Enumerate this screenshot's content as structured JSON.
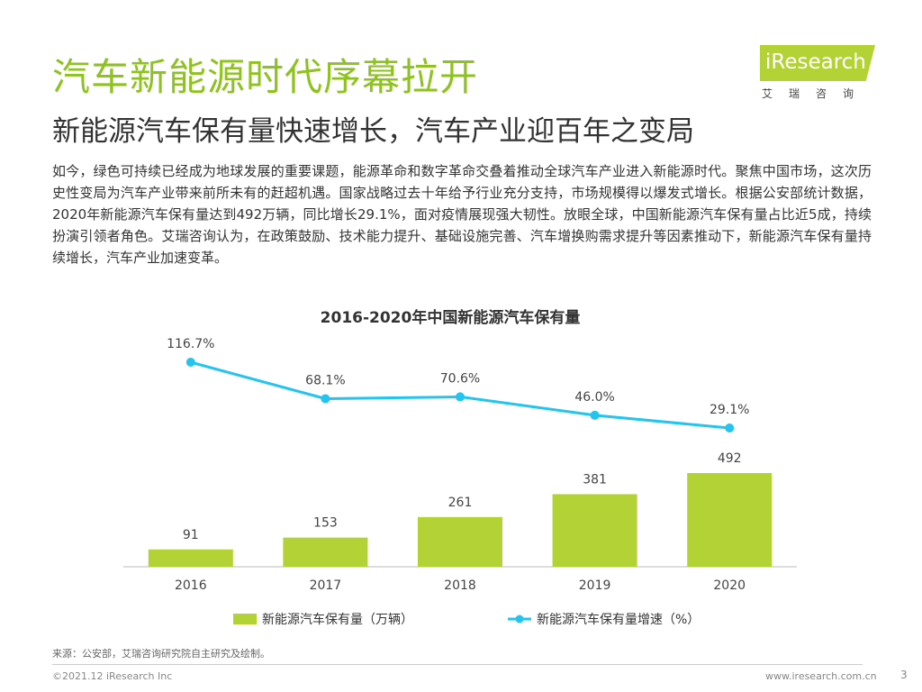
{
  "header": {
    "title": "汽车新能源时代序幕拉开",
    "subtitle": "新能源汽车保有量快速增长，汽车产业迎百年之变局"
  },
  "logo": {
    "name": "iResearch",
    "subtitle": "艾瑞咨询"
  },
  "body": {
    "paragraph": "如今，绿色可持续已经成为地球发展的重要课题，能源革命和数字革命交叠着推动全球汽车产业进入新能源时代。聚焦中国市场，这次历史性变局为汽车产业带来前所未有的赶超机遇。国家战略过去十年给予行业充分支持，市场规模得以爆发式增长。根据公安部统计数据，2020年新能源汽车保有量达到492万辆，同比增长29.1%，面对疫情展现强大韧性。放眼全球，中国新能源汽车保有量占比近5成，持续扮演引领者角色。艾瑞咨询认为，在政策鼓励、技术能力提升、基础设施完善、汽车增换购需求提升等因素推动下，新能源汽车保有量持续增长，汽车产业加速变革。"
  },
  "chart_data": {
    "type": "bar",
    "title": "2016-2020年中国新能源汽车保有量",
    "categories": [
      "2016",
      "2017",
      "2018",
      "2019",
      "2020"
    ],
    "series": [
      {
        "name": "新能源汽车保有量（万辆）",
        "type": "bar",
        "values": [
          91,
          153,
          261,
          381,
          492
        ],
        "labels": [
          "91",
          "153",
          "261",
          "381",
          "492"
        ],
        "color": "#b2d235"
      },
      {
        "name": "新能源汽车保有量增速（%）",
        "type": "line",
        "values": [
          116.7,
          68.1,
          70.6,
          46.0,
          29.1
        ],
        "labels": [
          "116.7%",
          "68.1%",
          "70.6%",
          "46.0%",
          "29.1%"
        ],
        "color": "#23c4ef"
      }
    ],
    "legend_position": "bottom",
    "grid": false
  },
  "footer": {
    "source": "来源：公安部，艾瑞咨询研究院自主研究及绘制。",
    "copyright": "©2021.12 iResearch Inc",
    "website": "www.iresearch.com.cn",
    "page": "3"
  }
}
